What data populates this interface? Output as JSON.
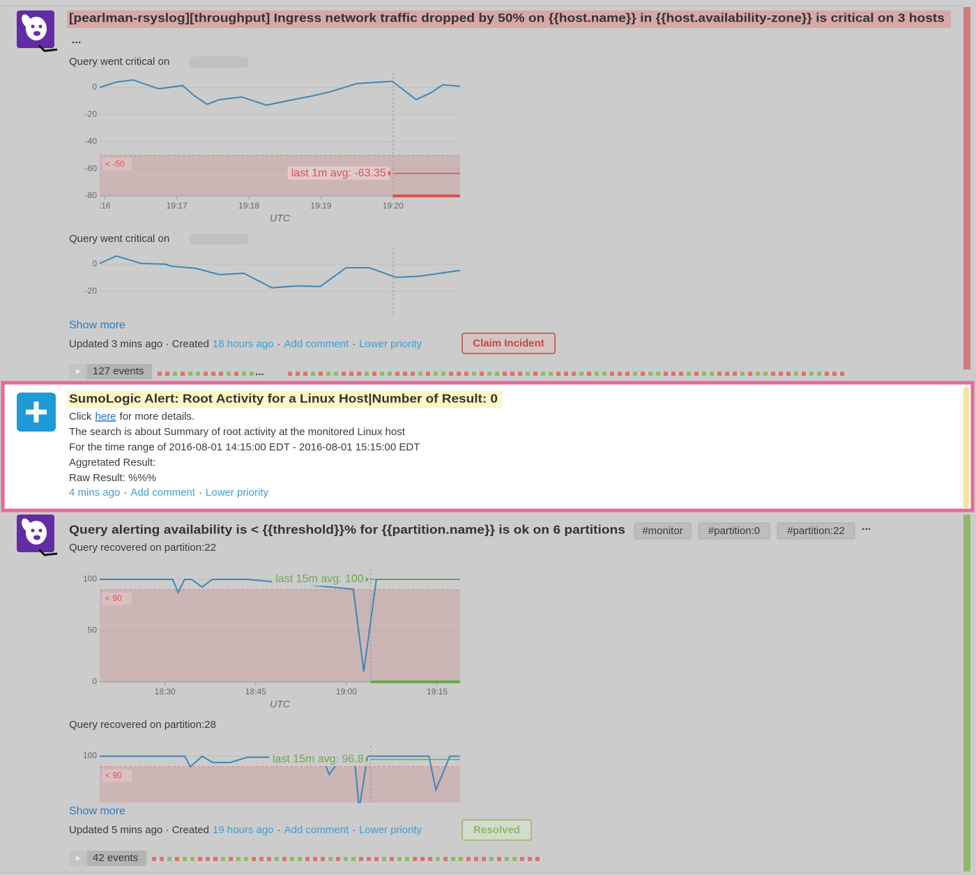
{
  "feed": [
    {
      "title": "[pearlman-rsyslog][throughput] Ingress network traffic dropped by 50% on {{host.name}} in {{host.availability-zone}} is critical on 3 hosts",
      "more": "...",
      "charts": [
        {
          "type": "line",
          "caption": "Query went critical on",
          "redacted": true,
          "color": "#3a87b8",
          "alert_color": "#d9534f",
          "x": [
            15.93,
            16.16,
            16.39,
            16.75,
            17.08,
            17.24,
            17.42,
            17.59,
            17.9,
            18.24,
            18.43,
            18.61,
            18.9,
            19.14,
            19.5,
            19.99,
            20.32,
            20.52,
            20.69,
            20.93
          ],
          "values": [
            0,
            4,
            5.6,
            -1,
            1.5,
            -6,
            -12.4,
            -9,
            -7,
            -13,
            -11,
            -9,
            -6,
            -3,
            3,
            4.6,
            -9,
            -4,
            2,
            1
          ],
          "xlim": [
            15.93,
            20.93
          ],
          "ylim": [
            -80,
            9
          ],
          "yticks": [
            0,
            -20,
            -40,
            -60,
            -80
          ],
          "xticks": [
            {
              "value": 16,
              "label": ":16"
            },
            {
              "value": 17,
              "label": "19:17"
            },
            {
              "value": 18,
              "label": "19:18"
            },
            {
              "value": 19,
              "label": "19:19"
            },
            {
              "value": 20,
              "label": "19:20"
            }
          ],
          "x_label": "UTC",
          "threshold": {
            "value": -50,
            "label": "< -50"
          },
          "avg": {
            "value": -63.35,
            "label": "last 1m avg: -63.35"
          },
          "event_x": 20
        },
        {
          "type": "line",
          "caption": "Query went critical on",
          "redacted": true,
          "color": "#3a87b8",
          "alert_color": "#d9534f",
          "x": [
            15.93,
            16.16,
            16.51,
            16.84,
            16.92,
            17.26,
            17.59,
            17.93,
            18.32,
            18.66,
            18.99,
            19.35,
            19.67,
            20.04,
            20.35,
            20.93
          ],
          "values": [
            0.5,
            6,
            0.5,
            0,
            -1.5,
            -3,
            -7.7,
            -6.7,
            -17.4,
            -16,
            -16.4,
            -2.6,
            -2.6,
            -9.7,
            -9,
            -4.6
          ],
          "xlim": [
            15.93,
            20.93
          ],
          "ylim": [
            -37.5,
            9.7
          ],
          "yticks": [
            0,
            -20
          ],
          "event_x": 20
        }
      ],
      "show_more": "Show more",
      "meta": [
        {
          "text": "Updated 3 mins ago · Created",
          "link": false
        },
        {
          "text": "18 hours ago",
          "link": true
        },
        {
          "text": "·",
          "link": false
        },
        {
          "text": "Add comment",
          "link": true
        },
        {
          "text": "·",
          "link": false
        },
        {
          "text": "Lower priority",
          "link": true
        }
      ],
      "button": "Claim Incident",
      "events": "127 events",
      "events_gap": "..."
    },
    {
      "title": "SumoLogic Alert: Root Activity for a Linux Host|Number of Result: 0",
      "lines": [
        [
          {
            "text": "Click",
            "link": false
          },
          {
            "text": "here",
            "link": true
          },
          {
            "text": "for more details.",
            "link": false
          }
        ],
        [
          {
            "text": "The search is about Summary of root activity at the monitored Linux host",
            "link": false
          }
        ],
        [
          {
            "text": "For the time range of 2016-08-01 14:15:00 EDT - 2016-08-01 15:15:00 EDT",
            "link": false
          }
        ],
        [
          {
            "text": "Aggretated Result:",
            "link": false
          }
        ],
        [
          {
            "text": "Raw Result: %%%",
            "link": false
          }
        ]
      ],
      "meta": [
        {
          "text": "4 mins ago",
          "link": true
        },
        {
          "text": "·",
          "link": false
        },
        {
          "text": "Add comment",
          "link": true
        },
        {
          "text": "·",
          "link": false
        },
        {
          "text": "Lower priority",
          "link": true
        }
      ]
    },
    {
      "title": "Query alerting availability is < {{threshold}}% for {{partition.name}} is ok on 6 partitions",
      "tags": [
        "#monitor",
        "#partition:0",
        "#partition:22"
      ],
      "more": "...",
      "charts": [
        {
          "type": "line",
          "caption": "Query recovered on partition:22",
          "redacted": false,
          "color": "#3a87b8",
          "alert_color": "#6aa84f",
          "x": [
            19.2,
            31.27,
            32.19,
            33.23,
            34.38,
            36.11,
            37.84,
            43.6,
            61.14,
            62.87,
            64.95,
            78.8
          ],
          "values": [
            100,
            100,
            87,
            100,
            100,
            92.5,
            100,
            100,
            90.5,
            10,
            100,
            100
          ],
          "xlim": [
            19.2,
            78.8
          ],
          "ylim": [
            0,
            107.5
          ],
          "yticks": [
            0,
            50,
            100
          ],
          "xticks": [
            {
              "value": 30,
              "label": "18:30"
            },
            {
              "value": 45,
              "label": "18:45"
            },
            {
              "value": 60,
              "label": "19:00"
            },
            {
              "value": 75,
              "label": "19:15"
            }
          ],
          "x_label": "UTC",
          "threshold": {
            "value": 90,
            "label": "< 90"
          },
          "avg": {
            "value": 100,
            "label": "last 15m avg: 100"
          },
          "event_x": 64
        },
        {
          "type": "line",
          "caption": "Query recovered on partition:28",
          "redacted": false,
          "color": "#3a87b8",
          "alert_color": "#6aa84f",
          "x": [
            19.2,
            33.27,
            34.19,
            36.15,
            37.88,
            40.77,
            43.65,
            56,
            57.15,
            59.23,
            61.3,
            62.11,
            63.5,
            73.65,
            74.8,
            77.1,
            78.8
          ],
          "values": [
            100,
            100,
            90,
            100,
            94,
            94,
            99,
            99,
            82.7,
            99,
            99,
            50,
            100,
            100,
            68,
            100,
            100
          ],
          "xlim": [
            19.2,
            78.8
          ],
          "ylim": [
            56,
            107
          ],
          "yticks": [
            100
          ],
          "threshold": {
            "value": 90,
            "label": "< 90"
          },
          "avg": {
            "value": 96.8,
            "label": "last 15m avg: 96.8"
          },
          "event_x": 64
        }
      ],
      "show_more": "Show more",
      "meta": [
        {
          "text": "Updated 5 mins ago · Created",
          "link": false
        },
        {
          "text": "19 hours ago",
          "link": true
        },
        {
          "text": "·",
          "link": false
        },
        {
          "text": "Add comment",
          "link": true
        },
        {
          "text": "·",
          "link": false
        },
        {
          "text": "Lower priority",
          "link": true
        }
      ],
      "button": "Resolved",
      "events": "42 events"
    }
  ]
}
